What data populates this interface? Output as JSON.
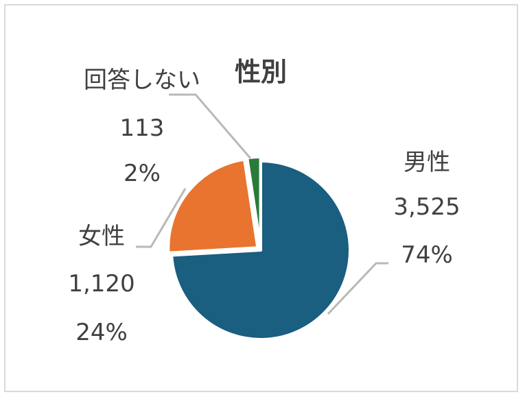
{
  "chart_data": {
    "type": "pie",
    "title": "性別",
    "slices": [
      {
        "name": "男性",
        "value": 3525,
        "value_label": "3,525",
        "percent_label": "74%",
        "color": "#1a5e80"
      },
      {
        "name": "女性",
        "value": 1120,
        "value_label": "1,120",
        "percent_label": "24%",
        "color": "#e8742f"
      },
      {
        "name": "回答しない",
        "value": 113,
        "value_label": "113",
        "percent_label": "2%",
        "color": "#2c7a3a"
      }
    ],
    "legend": "none",
    "leader_line_color": "#b8b8b8"
  }
}
